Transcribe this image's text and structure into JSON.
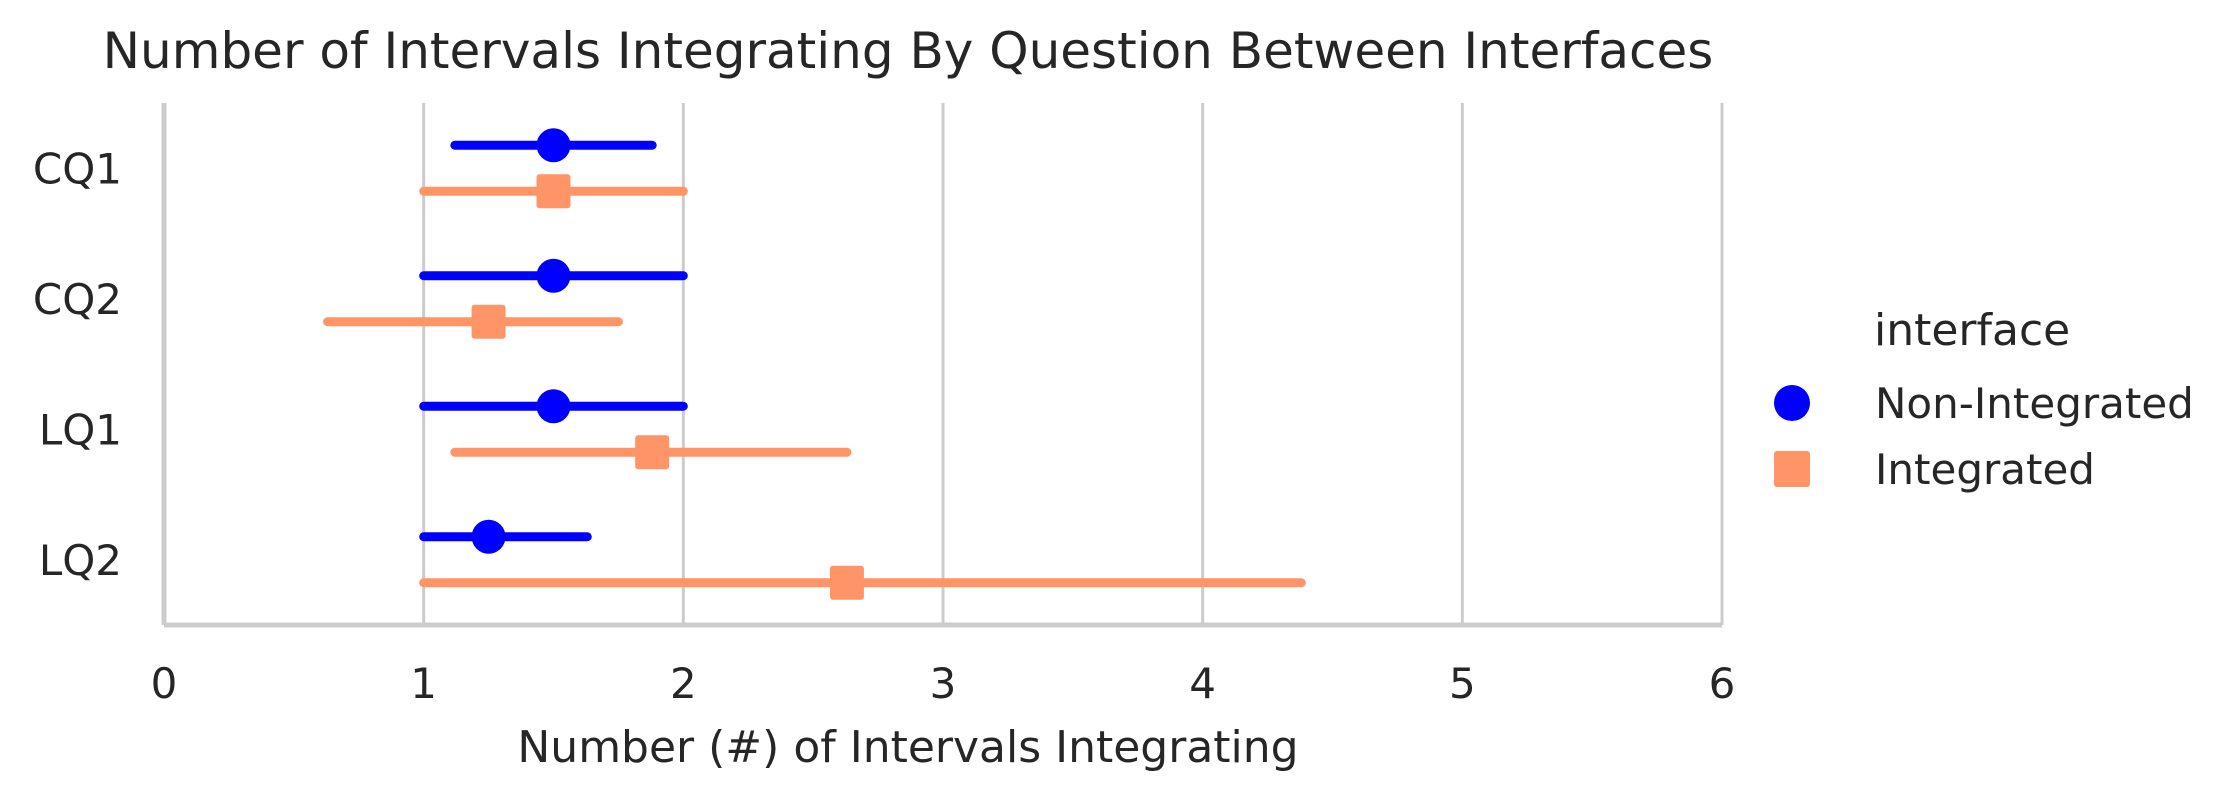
{
  "chart_data": {
    "type": "scatter",
    "title": "Number of Intervals Integrating By Question Between Interfaces",
    "xlabel": "Number (#) of Intervals Integrating",
    "ylabel": "",
    "xlim": [
      0,
      6
    ],
    "xticks": [
      "0",
      "1",
      "2",
      "3",
      "4",
      "5",
      "6"
    ],
    "categories": [
      "CQ1",
      "CQ2",
      "LQ1",
      "LQ2"
    ],
    "grid": "vertical",
    "legend": {
      "title": "interface",
      "placement": "right"
    },
    "series": [
      {
        "name": "Non-Integrated",
        "marker": "circle",
        "color": "#0000ff",
        "points": [
          {
            "category": "CQ1",
            "estimate": 1.5,
            "ci": [
              1.12,
              1.88
            ]
          },
          {
            "category": "CQ2",
            "estimate": 1.5,
            "ci": [
              1.0,
              2.0
            ]
          },
          {
            "category": "LQ1",
            "estimate": 1.5,
            "ci": [
              1.0,
              2.0
            ]
          },
          {
            "category": "LQ2",
            "estimate": 1.25,
            "ci": [
              1.0,
              1.63
            ]
          }
        ]
      },
      {
        "name": "Integrated",
        "marker": "square",
        "color": "#ff9466",
        "points": [
          {
            "category": "CQ1",
            "estimate": 1.5,
            "ci": [
              1.0,
              2.0
            ]
          },
          {
            "category": "CQ2",
            "estimate": 1.25,
            "ci": [
              0.63,
              1.75
            ]
          },
          {
            "category": "LQ1",
            "estimate": 1.88,
            "ci": [
              1.12,
              2.63
            ]
          },
          {
            "category": "LQ2",
            "estimate": 2.63,
            "ci": [
              1.0,
              4.38
            ]
          }
        ]
      }
    ]
  }
}
